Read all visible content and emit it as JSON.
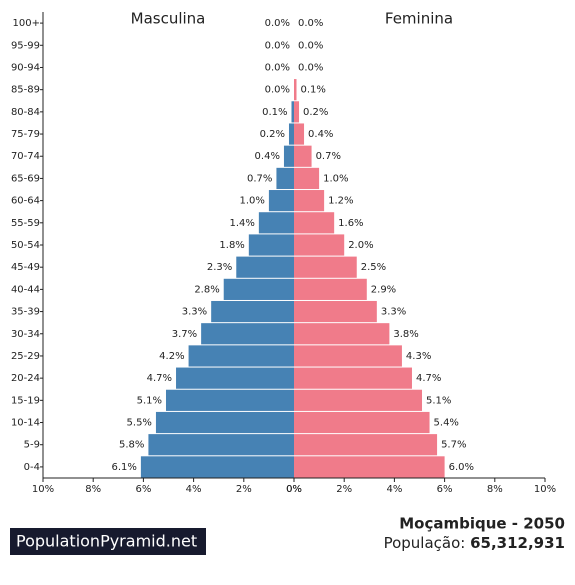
{
  "chart_data": {
    "type": "pyramid",
    "categories": [
      "100+",
      "95-99",
      "90-94",
      "85-89",
      "80-84",
      "75-79",
      "70-74",
      "65-69",
      "60-64",
      "55-59",
      "50-54",
      "45-49",
      "40-44",
      "35-39",
      "30-34",
      "25-29",
      "20-24",
      "15-19",
      "10-14",
      "5-9",
      "0-4"
    ],
    "series": [
      {
        "name": "Masculina",
        "color": "#4682b4",
        "values": [
          0.0,
          0.0,
          0.0,
          0.0,
          0.1,
          0.2,
          0.4,
          0.7,
          1.0,
          1.4,
          1.8,
          2.3,
          2.8,
          3.3,
          3.7,
          4.2,
          4.7,
          5.1,
          5.5,
          5.8,
          6.1
        ],
        "value_labels": [
          "0.0%",
          "0.0%",
          "0.0%",
          "0.0%",
          "0.1%",
          "0.2%",
          "0.4%",
          "0.7%",
          "1.0%",
          "1.4%",
          "1.8%",
          "2.3%",
          "2.8%",
          "3.3%",
          "3.7%",
          "4.2%",
          "4.7%",
          "5.1%",
          "5.5%",
          "5.8%",
          "6.1%"
        ]
      },
      {
        "name": "Feminina",
        "color": "#f07b8a",
        "values": [
          0.0,
          0.0,
          0.0,
          0.1,
          0.2,
          0.4,
          0.7,
          1.0,
          1.2,
          1.6,
          2.0,
          2.5,
          2.9,
          3.3,
          3.8,
          4.3,
          4.7,
          5.1,
          5.4,
          5.7,
          6.0
        ],
        "value_labels": [
          "0.0%",
          "0.0%",
          "0.0%",
          "0.1%",
          "0.2%",
          "0.4%",
          "0.7%",
          "1.0%",
          "1.2%",
          "1.6%",
          "2.0%",
          "2.5%",
          "2.9%",
          "3.3%",
          "3.8%",
          "4.3%",
          "4.7%",
          "5.1%",
          "5.4%",
          "5.7%",
          "6.0%"
        ]
      }
    ],
    "xlim": [
      0,
      10
    ],
    "xticks": [
      {
        "value": 0,
        "label": "0%"
      },
      {
        "value": 2,
        "label": "2%"
      },
      {
        "value": 4,
        "label": "4%"
      },
      {
        "value": 6,
        "label": "6%"
      },
      {
        "value": 8,
        "label": "8%"
      },
      {
        "value": 10,
        "label": "10%"
      }
    ]
  },
  "footer": {
    "brand": "PopulationPyramid.net",
    "title": "Moçambique - 2050",
    "population_label": "População:",
    "population": "65,312,931"
  }
}
